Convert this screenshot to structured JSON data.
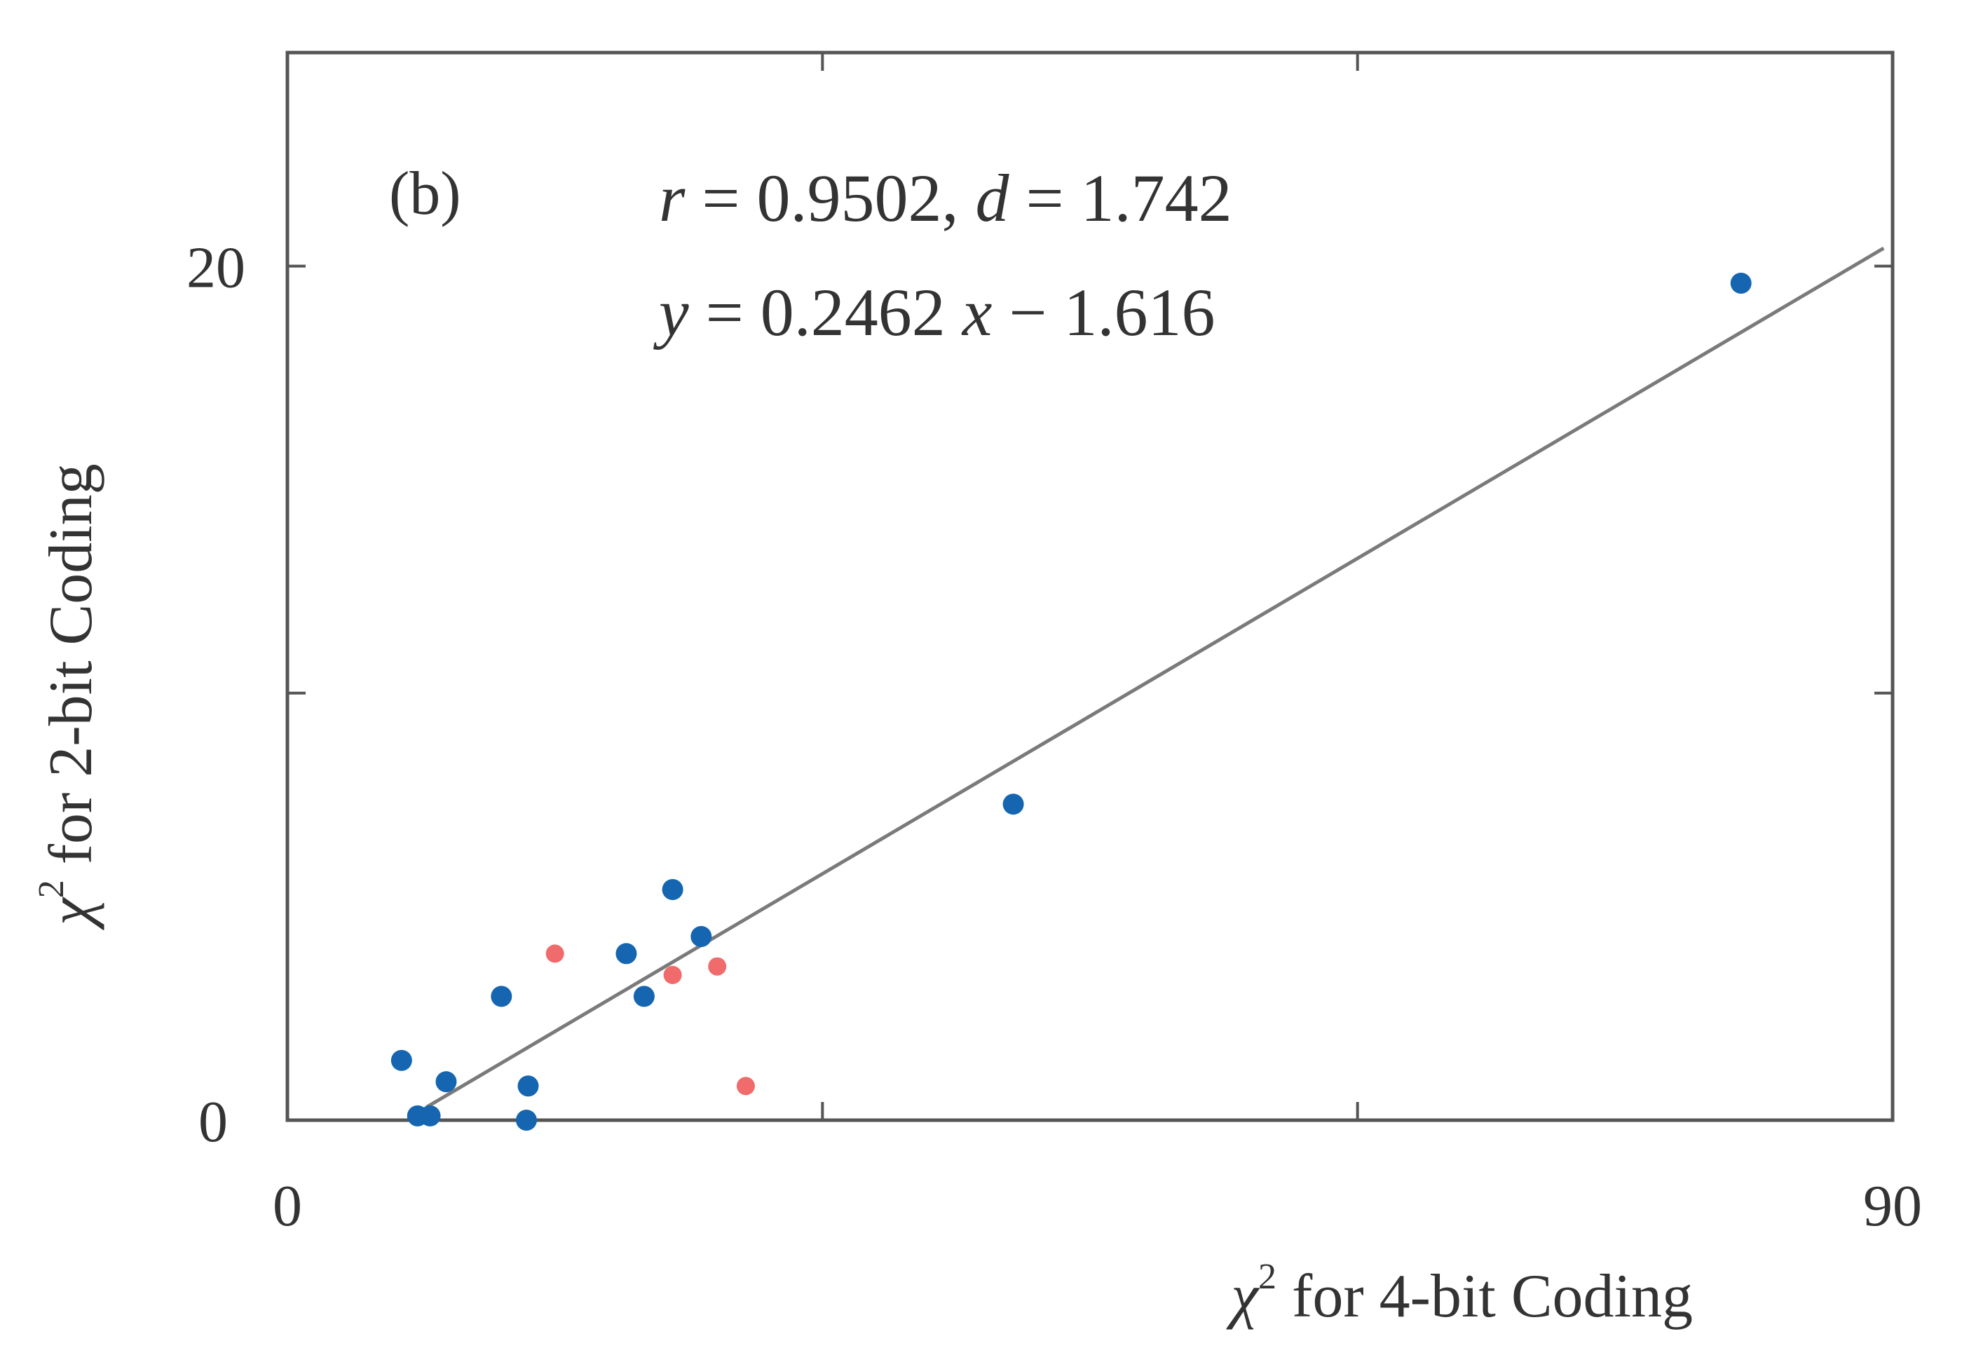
{
  "chart_data": {
    "type": "scatter",
    "panel_label": "(b)",
    "xlabel": {
      "symbol": "χ",
      "superscript": "2",
      "text": " for 4-bit Coding"
    },
    "ylabel": {
      "symbol": "χ",
      "superscript": "2",
      "text": " for 2-bit Coding"
    },
    "xlim": [
      0,
      90
    ],
    "ylim": [
      0,
      25
    ],
    "x_ticks": [
      0,
      30,
      60,
      90
    ],
    "y_ticks": [
      0,
      10,
      20
    ],
    "x_tick_labels": {
      "0": "0",
      "90": "90"
    },
    "y_tick_labels": {
      "0": "0",
      "20": "20"
    },
    "grid": false,
    "annotation": {
      "line1": {
        "r_sym": "r",
        "r_text": " = 0.9502, ",
        "d_sym": "d",
        "d_text": " = 1.742"
      },
      "line2": {
        "y_sym": "y",
        "mid": " = 0.2462 ",
        "x_sym": "x",
        "end": " − 1.616"
      }
    },
    "fit": {
      "slope": 0.2462,
      "intercept": -1.616,
      "x_range": [
        7.8,
        89.5
      ],
      "color": "#7a7a7a"
    },
    "series": [
      {
        "color": "#1565b0",
        "x": [
          6.4,
          7.3,
          8.0,
          8.9,
          12.0,
          13.5,
          13.4,
          19.0,
          20.0,
          21.6,
          23.2,
          40.7,
          81.5
        ],
        "y": [
          1.4,
          0.1,
          0.1,
          0.9,
          2.9,
          0.8,
          0.0,
          3.9,
          2.9,
          5.4,
          4.3,
          7.4,
          19.6
        ]
      },
      {
        "color": "#f06b6b",
        "x": [
          15.0,
          21.6,
          24.1,
          25.7
        ],
        "y": [
          3.9,
          3.4,
          3.6,
          0.8
        ]
      }
    ]
  }
}
